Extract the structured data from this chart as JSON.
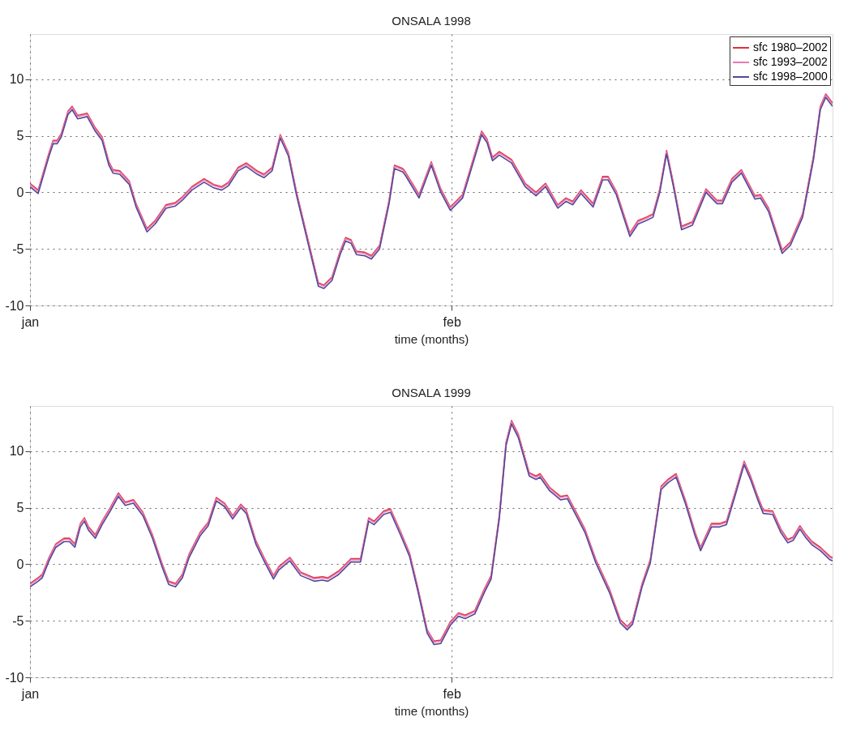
{
  "chart_data": [
    {
      "type": "line",
      "title": "ONSALA 1998",
      "xlabel": "time (months)",
      "x": [
        "1998-01-01T00:00",
        "1998-01-01T14:24",
        "1998-01-02T09:36",
        "1998-01-02T16:48",
        "1998-01-03T00:00",
        "1998-01-03T07:12",
        "1998-01-03T19:12",
        "1998-01-04T02:24",
        "1998-01-04T12:00",
        "1998-01-05T04:48",
        "1998-01-05T19:12",
        "1998-01-06T07:12",
        "1998-01-06T19:12",
        "1998-01-07T02:24",
        "1998-01-07T14:24",
        "1998-01-08T07:12",
        "1998-01-08T19:12",
        "1998-01-09T14:24",
        "1998-01-10T04:48",
        "1998-01-11T00:00",
        "1998-01-11T16:48",
        "1998-01-12T04:48",
        "1998-01-12T21:36",
        "1998-01-13T19:12",
        "1998-01-14T12:00",
        "1998-01-15T02:24",
        "1998-01-15T14:24",
        "1998-01-16T07:12",
        "1998-01-16T21:36",
        "1998-01-17T16:48",
        "1998-01-18T04:48",
        "1998-01-18T19:12",
        "1998-01-19T09:36",
        "1998-01-20T00:00",
        "1998-01-20T14:24",
        "1998-01-21T12:00",
        "1998-01-22T04:48",
        "1998-01-22T14:24",
        "1998-01-23T04:48",
        "1998-01-23T19:12",
        "1998-01-24T04:48",
        "1998-01-24T14:24",
        "1998-01-25T00:00",
        "1998-01-25T14:24",
        "1998-01-26T02:24",
        "1998-01-26T16:48",
        "1998-01-27T09:36",
        "1998-01-27T19:12",
        "1998-01-28T09:36",
        "1998-01-28T14:24",
        "1998-01-29T14:24",
        "1998-01-30T12:00",
        "1998-01-31T04:48",
        "1998-01-31T21:36",
        "1998-02-01T19:12",
        "1998-02-02T14:24",
        "1998-02-03T04:48",
        "1998-02-03T14:24",
        "1998-02-04T00:00",
        "1998-02-04T12:00",
        "1998-02-05T09:36",
        "1998-02-06T09:36",
        "1998-02-07T04:48",
        "1998-02-07T21:36",
        "1998-02-08T19:12",
        "1998-02-09T09:36",
        "1998-02-09T21:36",
        "1998-02-10T12:00",
        "1998-02-11T09:36",
        "1998-02-12T02:24",
        "1998-02-12T12:00",
        "1998-02-13T02:24",
        "1998-02-14T02:24",
        "1998-02-14T16:48",
        "1998-02-15T07:12",
        "1998-02-15T19:12",
        "1998-02-16T07:12",
        "1998-02-16T19:12",
        "1998-02-17T07:12",
        "1998-02-17T21:36",
        "1998-02-18T16:48",
        "1998-02-19T16:48",
        "1998-02-20T12:00",
        "1998-02-20T21:36",
        "1998-02-21T14:24",
        "1998-02-22T07:12",
        "1998-02-23T07:12",
        "1998-02-23T16:48",
        "1998-02-24T07:12",
        "1998-02-25T07:12",
        "1998-02-25T21:36",
        "1998-02-26T19:12",
        "1998-02-27T14:24",
        "1998-02-28T02:24",
        "1998-02-28T12:00",
        "1998-03-01T00:00"
      ],
      "series": [
        {
          "name": "sfc 1980–2002",
          "color": "#e0303c",
          "values": [
            0.8,
            0.2,
            3.5,
            4.6,
            4.6,
            5.2,
            7.2,
            7.6,
            6.8,
            7.0,
            5.7,
            4.9,
            2.7,
            2.0,
            1.9,
            1.0,
            -1.0,
            -3.2,
            -2.5,
            -1.1,
            -0.9,
            -0.4,
            0.5,
            1.2,
            0.7,
            0.5,
            0.9,
            2.2,
            2.6,
            1.9,
            1.6,
            2.2,
            5.1,
            3.5,
            0.0,
            -4.5,
            -8.0,
            -8.2,
            -7.5,
            -5.2,
            -4.0,
            -4.2,
            -5.2,
            -5.3,
            -5.6,
            -4.7,
            -0.7,
            2.4,
            2.1,
            1.8,
            -0.2,
            2.7,
            0.3,
            -1.3,
            -0.2,
            3.0,
            5.4,
            4.7,
            3.1,
            3.6,
            2.9,
            0.8,
            0.0,
            0.8,
            -1.1,
            -0.5,
            -0.8,
            0.2,
            -1.0,
            1.4,
            1.4,
            0.1,
            -3.6,
            -2.5,
            -2.2,
            -1.9,
            0.3,
            3.7,
            0.8,
            -3.0,
            -2.6,
            0.3,
            -0.7,
            -0.7,
            1.2,
            2.0,
            -0.3,
            -0.2,
            -1.4,
            -5.1,
            -4.4,
            -1.9,
            3.2,
            7.6,
            8.7,
            7.9
          ]
        },
        {
          "name": "sfc 1993–2002",
          "color": "#e87ab4",
          "values": [
            0.7,
            0.1,
            3.4,
            4.5,
            4.5,
            5.1,
            7.1,
            7.5,
            6.7,
            6.9,
            5.6,
            4.8,
            2.6,
            1.9,
            1.8,
            0.9,
            -1.1,
            -3.3,
            -2.6,
            -1.2,
            -1.0,
            -0.5,
            0.4,
            1.1,
            0.6,
            0.4,
            0.8,
            2.1,
            2.5,
            1.8,
            1.5,
            2.1,
            5.0,
            3.4,
            -0.1,
            -4.6,
            -8.1,
            -8.3,
            -7.6,
            -5.3,
            -4.1,
            -4.3,
            -5.3,
            -5.4,
            -5.7,
            -4.8,
            -0.8,
            2.3,
            2.0,
            1.7,
            -0.3,
            2.6,
            0.2,
            -1.4,
            -0.3,
            2.9,
            5.3,
            4.6,
            3.0,
            3.5,
            2.8,
            0.7,
            -0.1,
            0.7,
            -1.2,
            -0.6,
            -0.9,
            0.1,
            -1.1,
            1.3,
            1.3,
            0.0,
            -3.7,
            -2.6,
            -2.3,
            -2.0,
            0.2,
            3.6,
            0.7,
            -3.1,
            -2.7,
            0.2,
            -0.8,
            -0.8,
            1.1,
            1.9,
            -0.4,
            -0.3,
            -1.5,
            -5.2,
            -4.5,
            -2.0,
            3.1,
            7.5,
            8.6,
            7.8
          ]
        },
        {
          "name": "sfc 1998–2000",
          "color": "#55479a",
          "values": [
            0.5,
            -0.1,
            3.2,
            4.3,
            4.3,
            4.9,
            6.9,
            7.3,
            6.5,
            6.7,
            5.4,
            4.6,
            2.4,
            1.7,
            1.6,
            0.7,
            -1.3,
            -3.5,
            -2.8,
            -1.4,
            -1.2,
            -0.7,
            0.2,
            0.9,
            0.4,
            0.2,
            0.6,
            1.9,
            2.3,
            1.6,
            1.3,
            1.9,
            4.8,
            3.2,
            -0.3,
            -4.8,
            -8.3,
            -8.5,
            -7.8,
            -5.5,
            -4.3,
            -4.5,
            -5.5,
            -5.6,
            -5.9,
            -5.0,
            -1.0,
            2.1,
            1.8,
            1.5,
            -0.5,
            2.4,
            0.0,
            -1.6,
            -0.5,
            2.7,
            5.1,
            4.4,
            2.8,
            3.3,
            2.6,
            0.5,
            -0.3,
            0.5,
            -1.4,
            -0.8,
            -1.1,
            -0.1,
            -1.3,
            1.1,
            1.1,
            -0.2,
            -3.9,
            -2.8,
            -2.5,
            -2.2,
            0.0,
            3.4,
            0.5,
            -3.3,
            -2.9,
            0.0,
            -1.0,
            -1.0,
            0.9,
            1.7,
            -0.6,
            -0.5,
            -1.7,
            -5.4,
            -4.7,
            -2.2,
            2.9,
            7.3,
            8.4,
            7.6
          ]
        }
      ],
      "xlim": [
        "1998-01-01",
        "1998-03-01"
      ],
      "xticks": [
        {
          "value": "1998-01-01",
          "label": "jan"
        },
        {
          "value": "1998-02-01",
          "label": "feb"
        }
      ],
      "ylim": [
        -10,
        14
      ],
      "yticks": [
        -10,
        -5,
        0,
        5,
        10
      ],
      "grid": true,
      "legend": "top right",
      "line_style": "solid"
    },
    {
      "type": "line",
      "title": "ONSALA 1999",
      "xlabel": "time (months)",
      "x": [
        "1999-01-01T00:00",
        "1999-01-01T14:24",
        "1999-01-01T21:36",
        "1999-01-02T09:36",
        "1999-01-02T21:36",
        "1999-01-03T12:00",
        "1999-01-03T21:36",
        "1999-01-04T07:12",
        "1999-01-04T16:48",
        "1999-01-05T00:00",
        "1999-01-05T07:12",
        "1999-01-05T19:12",
        "1999-01-06T07:12",
        "1999-01-06T21:36",
        "1999-01-07T12:00",
        "1999-01-08T00:00",
        "1999-01-08T14:24",
        "1999-01-09T07:12",
        "1999-01-10T00:00",
        "1999-01-10T16:48",
        "1999-01-11T04:48",
        "1999-01-11T16:48",
        "1999-01-12T04:48",
        "1999-01-12T16:48",
        "1999-01-13T12:00",
        "1999-01-14T02:24",
        "1999-01-14T16:48",
        "1999-01-15T07:12",
        "1999-01-15T21:36",
        "1999-01-16T12:00",
        "1999-01-16T21:36",
        "1999-01-17T14:24",
        "1999-01-18T04:48",
        "1999-01-18T21:36",
        "1999-01-19T07:12",
        "1999-01-20T02:24",
        "1999-01-20T21:36",
        "1999-01-21T21:36",
        "1999-01-22T12:00",
        "1999-01-22T21:36",
        "1999-01-23T16:48",
        "1999-01-24T14:24",
        "1999-01-25T07:12",
        "1999-01-25T21:36",
        "1999-01-26T07:12",
        "1999-01-27T00:00",
        "1999-01-27T12:00",
        "1999-01-28T04:48",
        "1999-01-28T21:36",
        "1999-01-29T12:00",
        "1999-01-30T04:48",
        "1999-01-30T16:48",
        "1999-01-31T04:48",
        "1999-01-31T21:36",
        "1999-02-01T12:00",
        "1999-02-02T00:00",
        "1999-02-02T16:48",
        "1999-02-03T09:36",
        "1999-02-03T21:36",
        "1999-02-04T12:00",
        "1999-02-05T00:00",
        "1999-02-05T09:36",
        "1999-02-05T21:36",
        "1999-02-06T16:48",
        "1999-02-07T04:48",
        "1999-02-07T12:00",
        "1999-02-08T04:48",
        "1999-02-09T00:00",
        "1999-02-09T12:00",
        "1999-02-10T04:48",
        "1999-02-10T19:12",
        "1999-02-11T14:24",
        "1999-02-12T14:24",
        "1999-02-13T09:36",
        "1999-02-13T21:36",
        "1999-02-14T07:12",
        "1999-02-15T00:00",
        "1999-02-15T14:24",
        "1999-02-16T09:36",
        "1999-02-16T21:36",
        "1999-02-17T12:00",
        "1999-02-18T04:48",
        "1999-02-18T21:36",
        "1999-02-19T07:12",
        "1999-02-20T02:24",
        "1999-02-20T16:48",
        "1999-02-21T04:48",
        "1999-02-21T19:12",
        "1999-02-22T12:00",
        "1999-02-23T00:00",
        "1999-02-23T12:00",
        "1999-02-23T21:36",
        "1999-02-24T14:24",
        "1999-02-25T04:48",
        "1999-02-25T16:48",
        "1999-02-26T02:24",
        "1999-02-26T14:24",
        "1999-02-27T00:00",
        "1999-02-27T12:00",
        "1999-02-28T02:24",
        "1999-02-28T19:12",
        "1999-03-01T00:00"
      ],
      "series": [
        {
          "name": "sfc 1980–2002",
          "color": "#e0303c",
          "values": [
            -1.7,
            -1.2,
            -0.9,
            0.6,
            1.8,
            2.3,
            2.3,
            1.8,
            3.6,
            4.1,
            3.3,
            2.6,
            3.8,
            5.0,
            6.3,
            5.5,
            5.7,
            4.6,
            2.6,
            0.1,
            -1.5,
            -1.7,
            -0.9,
            0.9,
            2.8,
            3.7,
            5.9,
            5.4,
            4.3,
            5.3,
            4.8,
            2.1,
            0.6,
            -1.0,
            -0.2,
            0.6,
            -0.7,
            -1.2,
            -1.1,
            -1.2,
            -0.6,
            0.5,
            0.5,
            4.1,
            3.8,
            4.7,
            4.9,
            3.0,
            1.0,
            -2.0,
            -5.8,
            -6.8,
            -6.7,
            -5.1,
            -4.3,
            -4.5,
            -4.1,
            -2.2,
            -1.0,
            4.3,
            10.8,
            12.7,
            11.5,
            8.1,
            7.8,
            8.0,
            6.8,
            6.0,
            6.1,
            4.5,
            3.1,
            0.4,
            -2.2,
            -4.9,
            -5.5,
            -5.0,
            -1.7,
            0.4,
            6.9,
            7.5,
            8.0,
            5.6,
            2.8,
            1.5,
            3.6,
            3.6,
            3.8,
            6.2,
            9.1,
            7.7,
            6.0,
            4.8,
            4.7,
            3.1,
            2.2,
            2.4,
            3.4,
            2.7,
            2.0,
            1.5,
            0.7,
            0.6
          ]
        },
        {
          "name": "sfc 1993–2002",
          "color": "#e87ab4",
          "values": [
            -1.8,
            -1.3,
            -1.0,
            0.5,
            1.7,
            2.2,
            2.2,
            1.7,
            3.5,
            4.0,
            3.2,
            2.5,
            3.7,
            4.9,
            6.2,
            5.4,
            5.6,
            4.5,
            2.5,
            0.0,
            -1.6,
            -1.8,
            -1.0,
            0.8,
            2.7,
            3.6,
            5.8,
            5.3,
            4.2,
            5.2,
            4.7,
            2.0,
            0.5,
            -1.1,
            -0.3,
            0.5,
            -0.8,
            -1.3,
            -1.2,
            -1.3,
            -0.7,
            0.4,
            0.4,
            4.0,
            3.7,
            4.6,
            4.8,
            2.9,
            0.9,
            -2.1,
            -5.9,
            -6.9,
            -6.8,
            -5.2,
            -4.4,
            -4.6,
            -4.2,
            -2.3,
            -1.1,
            4.2,
            10.7,
            12.6,
            11.4,
            8.0,
            7.7,
            7.9,
            6.7,
            5.9,
            6.0,
            4.4,
            3.0,
            0.3,
            -2.3,
            -5.0,
            -5.6,
            -5.1,
            -1.8,
            0.3,
            6.8,
            7.4,
            7.9,
            5.5,
            2.7,
            1.4,
            3.5,
            3.5,
            3.7,
            6.1,
            9.0,
            7.6,
            5.9,
            4.7,
            4.6,
            3.0,
            2.1,
            2.3,
            3.3,
            2.6,
            1.9,
            1.4,
            0.6,
            0.5
          ]
        },
        {
          "name": "sfc 1998–2000",
          "color": "#55479a",
          "values": [
            -2.0,
            -1.5,
            -1.2,
            0.3,
            1.5,
            2.0,
            2.0,
            1.5,
            3.3,
            3.8,
            3.0,
            2.3,
            3.5,
            4.7,
            6.0,
            5.2,
            5.4,
            4.3,
            2.3,
            -0.2,
            -1.8,
            -2.0,
            -1.2,
            0.6,
            2.5,
            3.4,
            5.6,
            5.1,
            4.0,
            5.0,
            4.5,
            1.8,
            0.3,
            -1.3,
            -0.5,
            0.3,
            -1.0,
            -1.5,
            -1.4,
            -1.5,
            -0.9,
            0.2,
            0.2,
            3.8,
            3.5,
            4.4,
            4.6,
            2.7,
            0.7,
            -2.3,
            -6.1,
            -7.1,
            -7.0,
            -5.4,
            -4.6,
            -4.8,
            -4.4,
            -2.5,
            -1.3,
            4.0,
            10.5,
            12.4,
            11.2,
            7.8,
            7.5,
            7.7,
            6.5,
            5.7,
            5.8,
            4.2,
            2.8,
            0.1,
            -2.5,
            -5.2,
            -5.8,
            -5.3,
            -2.0,
            0.1,
            6.6,
            7.2,
            7.7,
            5.3,
            2.5,
            1.2,
            3.3,
            3.3,
            3.5,
            5.9,
            8.8,
            7.4,
            5.7,
            4.5,
            4.4,
            2.8,
            1.9,
            2.1,
            3.1,
            2.4,
            1.7,
            1.2,
            0.4,
            0.3
          ]
        }
      ],
      "xlim": [
        "1999-01-01",
        "1999-03-01"
      ],
      "xticks": [
        {
          "value": "1999-01-01",
          "label": "jan"
        },
        {
          "value": "1999-02-01",
          "label": "feb"
        }
      ],
      "ylim": [
        -10,
        14
      ],
      "yticks": [
        -10,
        -5,
        0,
        5,
        10
      ],
      "grid": true,
      "legend": false,
      "line_style": "solid"
    }
  ]
}
